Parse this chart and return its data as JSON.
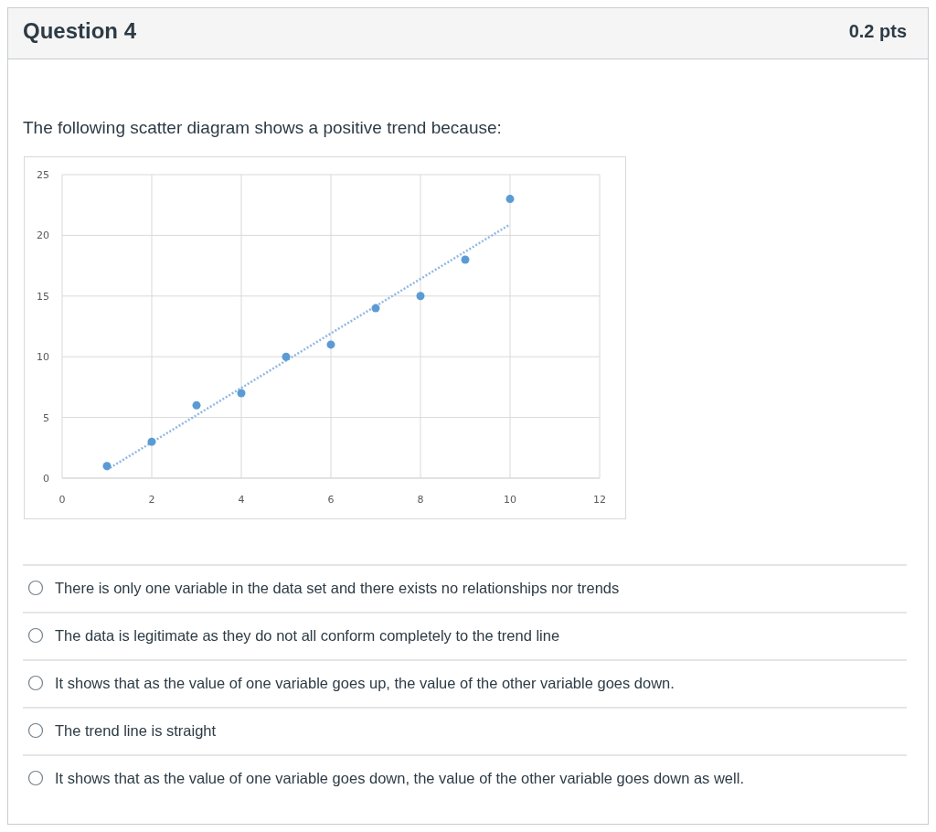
{
  "chart_data": {
    "type": "scatter",
    "title": "The following scatter diagram shows a positive trend because:",
    "annotations": [
      "Question 4",
      "0.2 pts",
      "There is only one variable in the data set and there exists no relationships nor trends",
      "The data is legitimate as they do not all conform completely to the trend line",
      "It shows that as the value of one variable goes up, the value of the other variable goes down.",
      "The trend line is straight",
      "It shows that as the value of one variable goes down, the value of the other variable goes down as well."
    ],
    "x": [
      1,
      2,
      3,
      4,
      5,
      6,
      7,
      8,
      9,
      10
    ],
    "series": [
      {
        "color": "#5b9bd5",
        "marker": "circle",
        "values": [
          1,
          3,
          6,
          7,
          10,
          11,
          14,
          15,
          18,
          23
        ]
      },
      {
        "type": "line",
        "color": "#8fb8e3",
        "line_style": "dotted",
        "marker": "none",
        "x": [
          1,
          10
        ],
        "values": [
          0.7,
          20.9
        ]
      }
    ],
    "xlim": [
      0,
      12
    ],
    "xticks": [
      0,
      2,
      4,
      6,
      8,
      10,
      12
    ],
    "ylim": [
      0,
      25
    ],
    "yticks": [
      0,
      5,
      10,
      15,
      20,
      25
    ],
    "grid": true
  }
}
